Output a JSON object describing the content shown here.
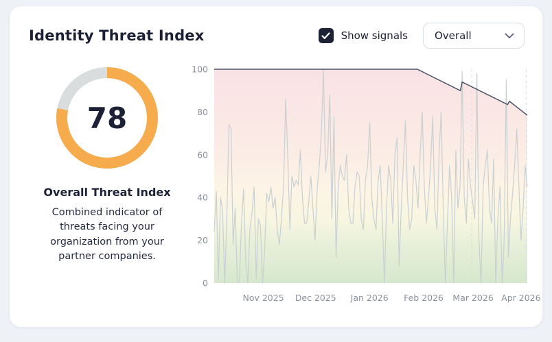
{
  "header": {
    "title": "Identity Threat Index",
    "checkbox_label": "Show signals",
    "checkbox_checked": true,
    "select_value": "Overall"
  },
  "gauge": {
    "value": 78,
    "max": 100,
    "title": "Overall Threat Index",
    "description": "Combined indicator of threats facing your organization from your partner companies.",
    "arc_color": "#f6ab4c",
    "track_color": "#d9dddd",
    "value_color": "#1d2136"
  },
  "chart_data": {
    "type": "line",
    "title": "",
    "xlabel": "",
    "ylabel": "",
    "ylim": [
      0,
      100
    ],
    "y_ticks": [
      0,
      20,
      40,
      60,
      80,
      100
    ],
    "x_ticks": [
      {
        "label": "Nov 2025",
        "pos": 0.157
      },
      {
        "label": "Dec 2025",
        "pos": 0.324
      },
      {
        "label": "Jan 2026",
        "pos": 0.496
      },
      {
        "label": "Feb 2026",
        "pos": 0.669
      },
      {
        "label": "Mar 2026",
        "pos": 0.827
      },
      {
        "label": "Apr 2026",
        "pos": 0.98
      }
    ],
    "grid": false,
    "legend_position": "none",
    "marker_lines": [
      0.823,
      0.997
    ],
    "zone_gradient": [
      {
        "offset": "0%",
        "color": "#f9e2e5"
      },
      {
        "offset": "38%",
        "color": "#fbece5"
      },
      {
        "offset": "56%",
        "color": "#fdf4e6"
      },
      {
        "offset": "70%",
        "color": "#f8f6e1"
      },
      {
        "offset": "83%",
        "color": "#e7efd9"
      },
      {
        "offset": "100%",
        "color": "#d6e8ce"
      }
    ],
    "colors": {
      "threat": "#4b5268",
      "signal": "#c8d0d3",
      "marker": "#d6dce3",
      "tick": "#8b909d"
    },
    "series": [
      {
        "name": "Overall threat index",
        "type": "line-area",
        "points": [
          [
            0,
            100
          ],
          [
            0.649,
            100
          ],
          [
            0.786,
            90
          ],
          [
            0.792,
            94
          ],
          [
            0.937,
            83.5
          ],
          [
            0.943,
            85
          ],
          [
            1,
            78.5
          ]
        ]
      },
      {
        "name": "Signals",
        "type": "line",
        "values": [
          24,
          43,
          2,
          40,
          34,
          0,
          30,
          74,
          72,
          18,
          35,
          0,
          1,
          28,
          44,
          10,
          0,
          25,
          33,
          45,
          2,
          30,
          27,
          0,
          15,
          42,
          38,
          45,
          35,
          40,
          25,
          18,
          30,
          45,
          86,
          60,
          25,
          50,
          45,
          48,
          46,
          62,
          40,
          28,
          28,
          38,
          50,
          35,
          20,
          44,
          55,
          70,
          100,
          52,
          60,
          88,
          30,
          78,
          12,
          45,
          55,
          50,
          48,
          60,
          35,
          28,
          28,
          45,
          52,
          50,
          30,
          25,
          48,
          55,
          75,
          40,
          30,
          25,
          48,
          55,
          30,
          0,
          35,
          55,
          48,
          28,
          60,
          68,
          8,
          35,
          55,
          76,
          40,
          25,
          30,
          55,
          48,
          35,
          60,
          80,
          45,
          28,
          40,
          55,
          78,
          35,
          25,
          60,
          80,
          35,
          0,
          28,
          55,
          40,
          0,
          62,
          35,
          45,
          99,
          40,
          28,
          58,
          45,
          38,
          30,
          98,
          20,
          0,
          45,
          55,
          62,
          35,
          28,
          58,
          0,
          30,
          45,
          0,
          20,
          95,
          12,
          30,
          42,
          55,
          72,
          45,
          20,
          35,
          55,
          45
        ]
      }
    ]
  }
}
